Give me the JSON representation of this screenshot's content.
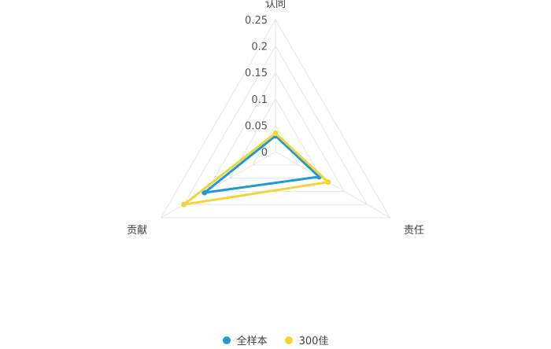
{
  "chart_data": {
    "type": "radar",
    "categories": [
      "认同",
      "责任",
      "贡献"
    ],
    "rmin": 0,
    "rmax": 0.25,
    "ticks": [
      0,
      0.05,
      0.1,
      0.15,
      0.2,
      0.25
    ],
    "tick_labels": [
      "0",
      "0.05",
      "0.1",
      "0.15",
      "0.2",
      "0.25"
    ],
    "grid": true,
    "legend_position": "bottom",
    "series": [
      {
        "name": "全样本",
        "color": "#1f9ad6",
        "values": [
          0.03,
          0.095,
          0.155
        ]
      },
      {
        "name": "300佳",
        "color": "#f5d43a",
        "values": [
          0.035,
          0.115,
          0.2
        ]
      }
    ]
  }
}
